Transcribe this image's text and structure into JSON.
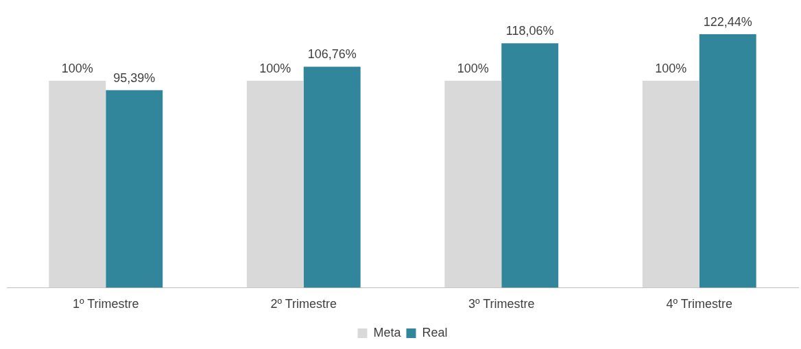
{
  "chart_data": {
    "type": "bar",
    "categories": [
      "1º Trimestre",
      "2º Trimestre",
      "3º Trimestre",
      "4º Trimestre"
    ],
    "series": [
      {
        "name": "Meta",
        "color": "#d9d9d9",
        "values": [
          100,
          100,
          100,
          100
        ],
        "value_labels": [
          "100%",
          "100%",
          "100%",
          "100%"
        ]
      },
      {
        "name": "Real",
        "color": "#31869b",
        "values": [
          95.39,
          106.76,
          118.06,
          122.44
        ],
        "value_labels": [
          "95,39%",
          "106,76%",
          "118,06%",
          "122,44%"
        ]
      }
    ],
    "grid": false,
    "legend": "bottom"
  }
}
